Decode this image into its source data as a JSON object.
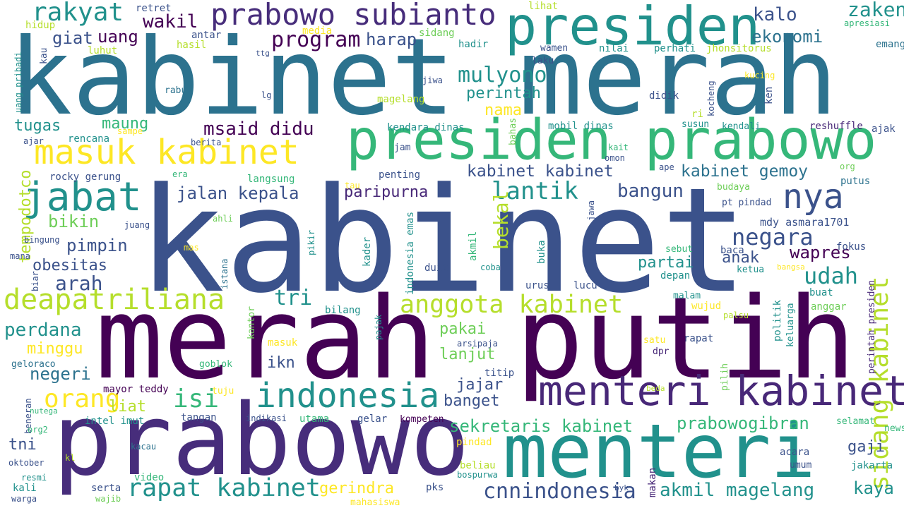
{
  "palette": {
    "navy": "#3b528b",
    "indigo": "#472d7b",
    "deep_purple": "#440154",
    "purple": "#482878",
    "slate": "#31688e",
    "blue_teal": "#2c728e",
    "teal": "#21918c",
    "teal2": "#1f9e89",
    "green": "#35b779",
    "green2": "#6ece58",
    "lime": "#b5de2b",
    "yellow": "#fde725"
  },
  "words": [
    "kabinet",
    "merah",
    "putih",
    "kabinet merah",
    "prabowo",
    "menteri",
    "presiden prabowo",
    "presiden",
    "menteri kabinet",
    "prabowo subianto",
    "masuk kabinet",
    "jabat",
    "indonesia",
    "deapatriliana",
    "anggota kabinet",
    "sidang kabinet",
    "nya",
    "rakyat",
    "rapat kabinet",
    "negara",
    "udah",
    "cnnindonesia",
    "akmil magelang",
    "sekretaris kabinet",
    "prabowogibran",
    "orang",
    "isi",
    "lantik",
    "tri",
    "kabinet kabinet",
    "msaid didu",
    "kabinet gemoy",
    "program",
    "mulyono",
    "ekonomi",
    "zaken",
    "kalo",
    "wakil",
    "harap",
    "uang",
    "giat",
    "jalan kepala",
    "bangun",
    "paripurna",
    "bekal",
    "pimpin",
    "arah",
    "wapres",
    "perdana",
    "tugas",
    "maung",
    "bikin",
    "minggu",
    "negeri",
    "obesitas",
    "partai",
    "anak",
    "perintah",
    "nama",
    "pakai",
    "lanjut",
    "jajar",
    "banget",
    "liat",
    "ikn",
    "gerindra",
    "kaya",
    "gaji",
    "tni",
    "tempodotco",
    "mdy asmara1701",
    "rocky gerung",
    "kendara dinas",
    "mobil dinas",
    "reshuffle",
    "kendali",
    "susun",
    "ajak",
    "didik",
    "kocheng",
    "ken",
    "ri",
    "kucing",
    "emang",
    "jhonsitorus",
    "perhati",
    "nilai",
    "hadir",
    "laku",
    "wamen",
    "magelang",
    "jiwa",
    "sidang",
    "media",
    "hasil",
    "antar",
    "luhut",
    "hidup",
    "retret",
    "lihat",
    "apresiasi",
    "rencana",
    "kau",
    "uang pribadi",
    "rabu",
    "lg",
    "ttg",
    "sampe",
    "berita",
    "ajar",
    "jam",
    "bahas",
    "kait",
    "omon",
    "ape",
    "org",
    "putus",
    "budaya",
    "pt pindad",
    "langsung",
    "era",
    "penting",
    "tau",
    "ahli",
    "juang",
    "bingung",
    "mana",
    "biar",
    "mas",
    "istana",
    "pikir",
    "kader",
    "indonesia emas",
    "akmil",
    "magelang jawa",
    "buka",
    "duit",
    "coba",
    "fokus",
    "sebut",
    "baca",
    "ketua",
    "bangsa",
    "perintah presiden",
    "depan",
    "urus",
    "lucu",
    "malam",
    "wujud",
    "buat",
    "anggar",
    "politik",
    "keluarga",
    "palsu",
    "bilang",
    "kantor",
    "masuk",
    "pajak",
    "arsipaja",
    "satu",
    "rapat",
    "dpr",
    "pilih",
    "geloraco",
    "goblok",
    "titip",
    "mayor teddy",
    "tuju",
    "beda",
    "selamat",
    "news",
    "beneran",
    "nutega",
    "org2",
    "indikasi",
    "utama",
    "gelar",
    "kompeten",
    "tangan",
    "intel imut",
    "kacau",
    "pindad",
    "acara",
    "umum",
    "jakarta",
    "oktober",
    "kl",
    "beliau",
    "bospurwa",
    "video",
    "resmi",
    "kali",
    "serta",
    "wajib",
    "warga",
    "pks",
    "byk",
    "makan",
    "mahasiswa"
  ]
}
